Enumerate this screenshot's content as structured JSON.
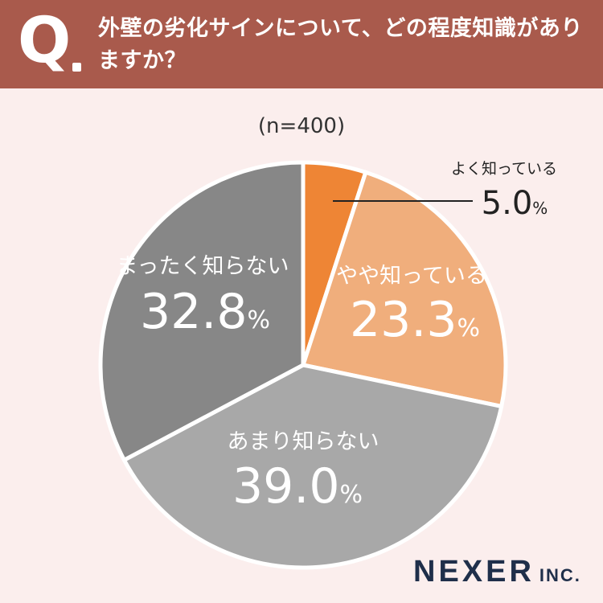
{
  "header": {
    "q_letter": "Q",
    "question": "外壁の劣化サインについて、どの程度知識がありますか？"
  },
  "sample": "(n=400)",
  "chart_data": {
    "type": "pie",
    "title": "外壁の劣化サインについて、どの程度知識がありますか？",
    "categories": [
      "よく知っている",
      "やや知っている",
      "あまり知らない",
      "まったく知らない"
    ],
    "values": [
      5.0,
      23.3,
      39.0,
      32.8
    ],
    "value_labels": [
      "5.0",
      "23.3",
      "39.0",
      "32.8"
    ],
    "unit": "%",
    "colors": [
      "#ee8535",
      "#f0ae7c",
      "#a8a8a8",
      "#878787"
    ],
    "start": "12 o'clock, clockwise"
  },
  "logo": {
    "main": "NEXER",
    "sub": "INC."
  }
}
